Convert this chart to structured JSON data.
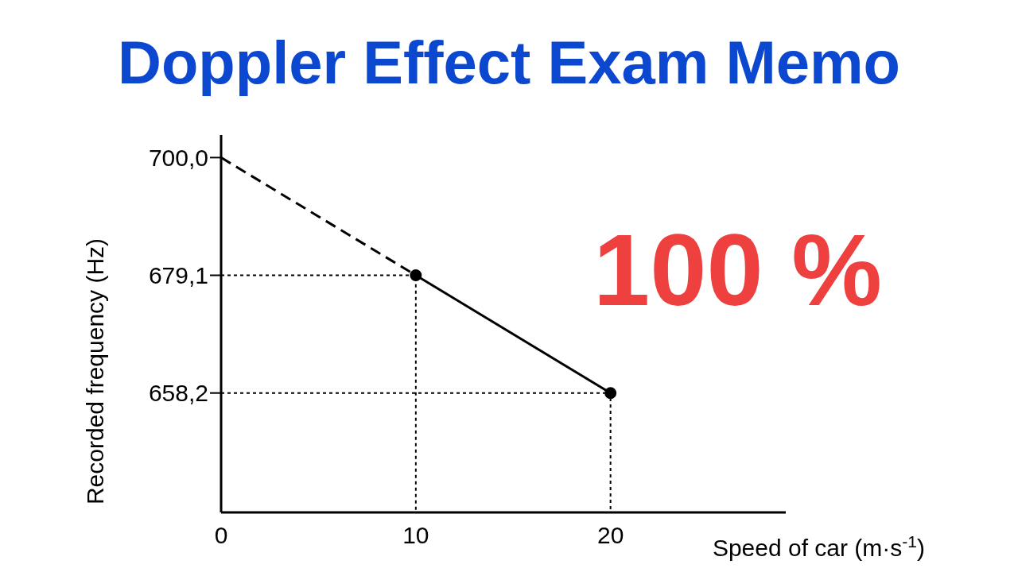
{
  "chart_data": {
    "type": "line",
    "title": "Doppler Effect Exam Memo",
    "xlabel": "Speed of car (m·s$^{-1}$)",
    "ylabel": "Recorded frequency (Hz)",
    "annotations": [
      "100 %"
    ],
    "xlim": [
      0,
      29
    ],
    "xticks": [
      0,
      10,
      20
    ],
    "ylim": [
      637,
      704
    ],
    "yticks": [
      {
        "value": 700,
        "label": "700,0"
      },
      {
        "value": 679.1,
        "label": "679,1"
      },
      {
        "value": 658.2,
        "label": "658,2"
      }
    ],
    "series": [
      {
        "color": "#000000",
        "x": [
          0,
          10
        ],
        "values": [
          700,
          679.1
        ],
        "line_style": "dashed"
      },
      {
        "color": "#000000",
        "x": [
          10,
          20
        ],
        "values": [
          679.1,
          658.2
        ],
        "line_style": "solid",
        "marker": "circle"
      },
      {
        "color": "#000000",
        "x": [
          0,
          10,
          10
        ],
        "values": [
          679.1,
          679.1,
          637
        ],
        "line_style": "dotted"
      },
      {
        "color": "#000000",
        "x": [
          0,
          20,
          20
        ],
        "values": [
          658.2,
          658.2,
          637
        ],
        "line_style": "dotted"
      }
    ]
  }
}
